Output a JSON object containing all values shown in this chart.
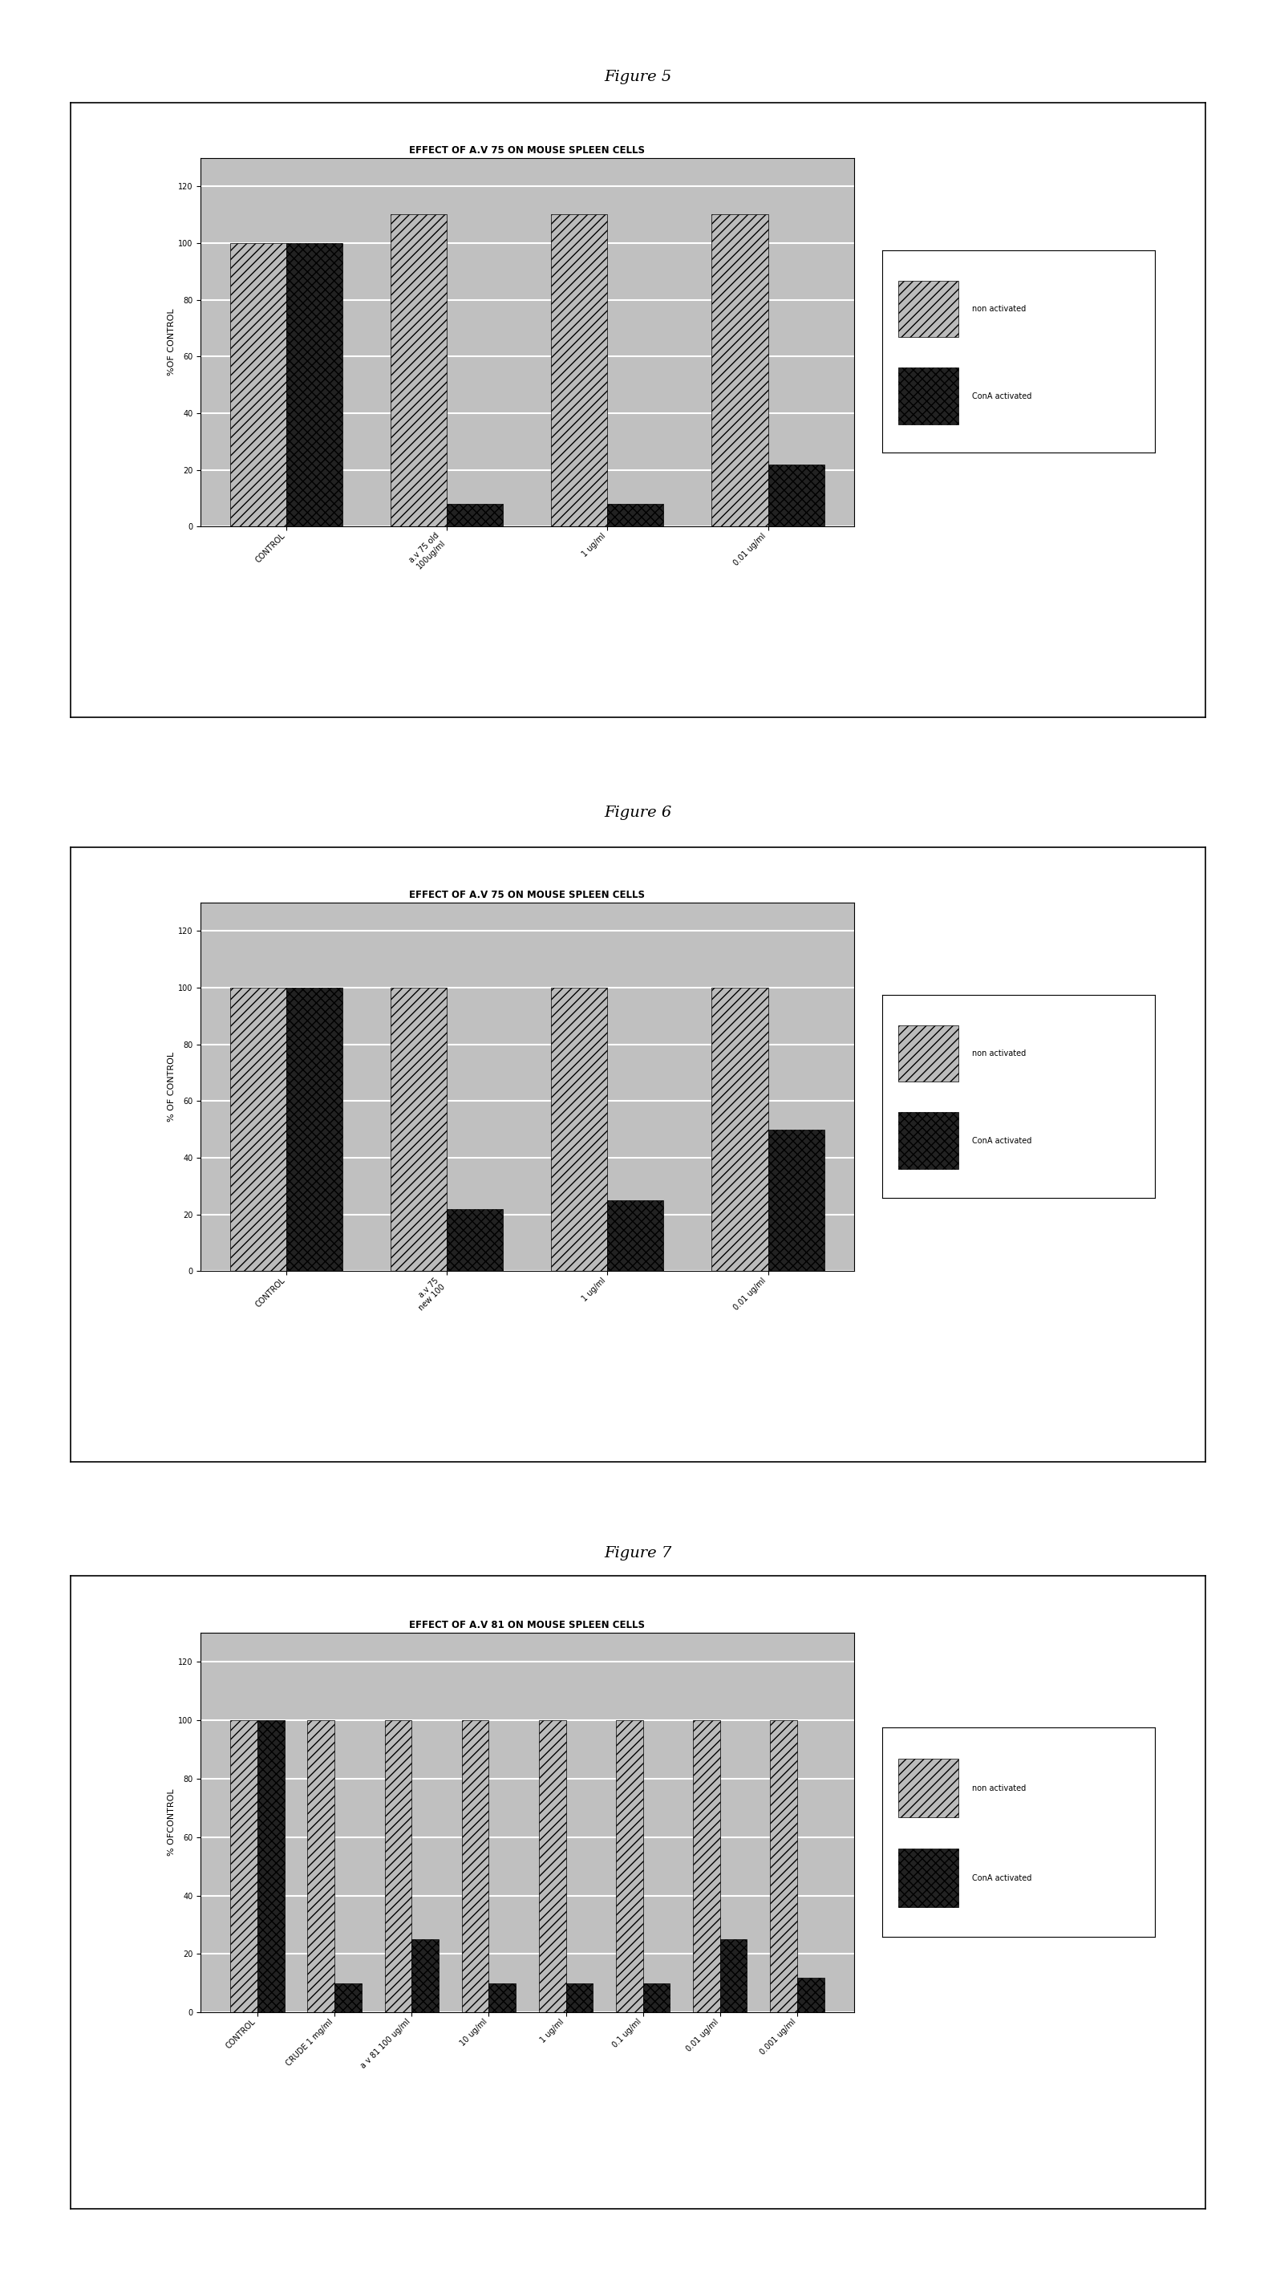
{
  "fig5": {
    "title": "EFFECT OF A.V 75 ON MOUSE SPLEEN CELLS",
    "ylabel": "%OF CONTROL",
    "categories": [
      "CONTROL",
      "a.v 75 old\n100ug/ml",
      "1 ug/ml",
      "0.01 ug/ml"
    ],
    "non_activated": [
      100,
      110,
      110,
      110
    ],
    "cona_activated": [
      100,
      8,
      8,
      22
    ],
    "ylim": [
      0,
      130
    ],
    "yticks": [
      0,
      20,
      40,
      60,
      80,
      100,
      120
    ]
  },
  "fig6": {
    "title": "EFFECT OF A.V 75 ON MOUSE SPLEEN CELLS",
    "ylabel": "% OF CONTROL",
    "categories": [
      "CONTROL",
      "a.v 75\nnew 100",
      "1 ug/ml",
      "0.01 ug/ml"
    ],
    "non_activated": [
      100,
      100,
      100,
      100
    ],
    "cona_activated": [
      100,
      22,
      25,
      50
    ],
    "ylim": [
      0,
      130
    ],
    "yticks": [
      0,
      20,
      40,
      60,
      80,
      100,
      120
    ]
  },
  "fig7": {
    "title": "EFFECT OF A.V 81 ON MOUSE SPLEEN CELLS",
    "ylabel": "% OFCONTROL",
    "categories": [
      "CONTROL",
      "CRUDE 1 mg/ml",
      "a v 81 100 ug/ml",
      "10 ug/ml",
      "1 ug/ml",
      "0.1 ug/ml",
      "0.01 ug/ml",
      "0.001 ug/ml"
    ],
    "non_activated": [
      100,
      100,
      100,
      100,
      100,
      100,
      100,
      100
    ],
    "cona_activated": [
      100,
      10,
      25,
      10,
      10,
      10,
      25,
      12
    ],
    "ylim": [
      0,
      130
    ],
    "yticks": [
      0,
      20,
      40,
      60,
      80,
      100,
      120
    ]
  },
  "legend_non_activated": "non activated",
  "legend_cona_activated": "ConA activated",
  "figure_label_fontsize": 14,
  "chart_title_fontsize": 8.5,
  "axis_label_fontsize": 8,
  "tick_fontsize": 7,
  "bar_width": 0.35,
  "na_color": "#bbbbbb",
  "ca_color": "#222222",
  "bg_color": "#c0c0c0",
  "grid_color": "#ffffff"
}
